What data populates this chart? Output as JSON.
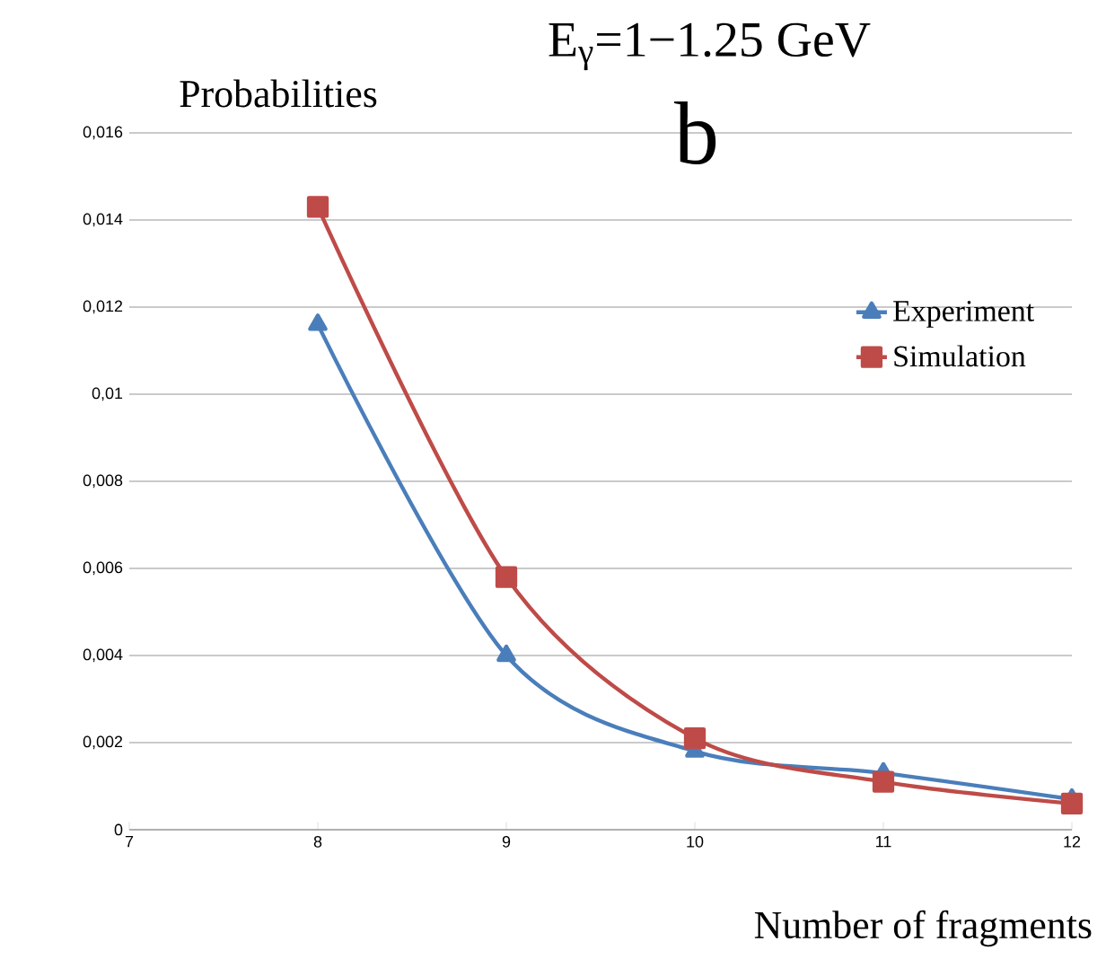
{
  "chart_data": {
    "type": "line",
    "title": "E$_{γ}$=1−1.25 GeV",
    "subtitle": "b",
    "ylabel": "Probabilities",
    "xlabel": "Number of fragments",
    "x": [
      8,
      9,
      10,
      11,
      12
    ],
    "series": [
      {
        "name": "Experiment",
        "color": "#4a7ebb",
        "marker": "triangle",
        "values": [
          0.0116,
          0.004,
          0.0018,
          0.0013,
          0.0007
        ]
      },
      {
        "name": "Simulation",
        "color": "#be4b48",
        "marker": "square",
        "values": [
          0.0143,
          0.0058,
          0.0021,
          0.0011,
          0.0006
        ]
      }
    ],
    "xlim": [
      7,
      12
    ],
    "xticks": [
      7,
      8,
      9,
      10,
      11,
      12
    ],
    "ylim": [
      0,
      0.016
    ],
    "yticks": [
      0,
      {
        "value": 0.002,
        "label": "0,002"
      },
      {
        "value": 0.004,
        "label": "0,004"
      },
      {
        "value": 0.006,
        "label": "0,006"
      },
      {
        "value": 0.008,
        "label": "0,008"
      },
      {
        "value": 0.01,
        "label": "0,01"
      },
      {
        "value": 0.012,
        "label": "0,012"
      },
      {
        "value": 0.014,
        "label": "0,014"
      },
      {
        "value": 0.016,
        "label": "0,016"
      }
    ],
    "grid": "y",
    "legend": "right",
    "line_style": "solid"
  }
}
